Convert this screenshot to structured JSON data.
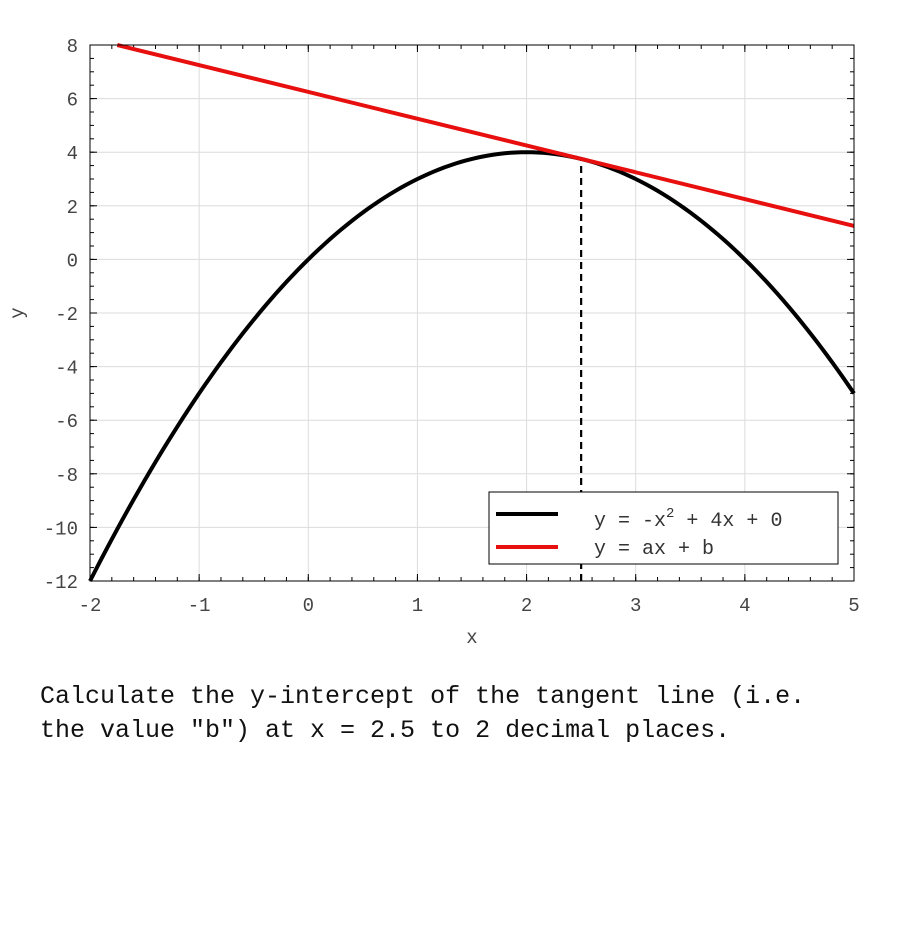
{
  "chart_data": {
    "type": "line",
    "xlabel": "x",
    "ylabel": "y",
    "xlim": [
      -2,
      5
    ],
    "ylim": [
      -12,
      8
    ],
    "xticks": [
      "-2",
      "-1",
      "0",
      "1",
      "2",
      "3",
      "4",
      "5"
    ],
    "yticks": [
      "-12",
      "-10",
      "-8",
      "-6",
      "-4",
      "-2",
      "0",
      "2",
      "4",
      "6",
      "8"
    ],
    "grid": true,
    "legend_position": "lower-right",
    "series": [
      {
        "legend": "y = -x",
        "legend_exponent": "2",
        "legend_tail": " + 4x + 0",
        "function": "y = -x^2 + 4x + 0",
        "color": "#000000",
        "x": [
          -2,
          -1.5,
          -1,
          -0.5,
          0,
          0.5,
          1,
          1.5,
          2,
          2.5,
          3,
          3.5,
          4,
          4.5,
          5
        ],
        "y": [
          -12,
          -8.25,
          -5,
          -2.25,
          0,
          1.75,
          3,
          3.75,
          4,
          3.75,
          3,
          1.75,
          0,
          -2.25,
          -5
        ]
      },
      {
        "legend": "y = ax + b",
        "color": "#e8100f",
        "x": [
          -1.75,
          5
        ],
        "y": [
          8.0,
          1.25
        ]
      }
    ],
    "vertical_marker": {
      "x": 2.5,
      "y_from": -12,
      "y_to": 3.75,
      "style": "dashed",
      "color": "#000000"
    }
  },
  "question": "Calculate the y-intercept of the tangent line (i.e. the value \"b\") at x = 2.5 to 2 decimal places."
}
